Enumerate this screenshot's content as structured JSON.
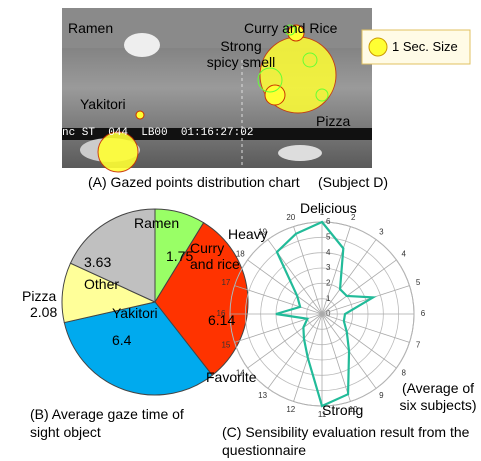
{
  "panel_a": {
    "labels": [
      "Ramen",
      "Curry and Rice",
      "Strong spicy smell",
      "Yakitori",
      "Pizza"
    ],
    "legend": "1 Sec. Size",
    "timestamp": "nc ST  044  LB00  01:16:27:02",
    "caption": "(A) Gazed points distribution chart",
    "subject": "(Subject D)"
  },
  "chart_data": [
    {
      "type": "pie",
      "caption": "(B) Average gaze time of sight object",
      "categories": [
        "Ramen",
        "Curry and rice",
        "Yakitori",
        "Pizza",
        "Other"
      ],
      "values": [
        1.75,
        6.14,
        6.4,
        2.08,
        3.63
      ],
      "colors": [
        "#99ff66",
        "#ff3300",
        "#00aaee",
        "#ffff99",
        "#c0c0c0"
      ]
    },
    {
      "type": "radar",
      "caption": "(C) Sensibility evaluation result from the questionnaire",
      "categories": [
        "1",
        "2",
        "3",
        "4",
        "5",
        "6",
        "7",
        "8",
        "9",
        "10",
        "11",
        "12",
        "13",
        "14",
        "15",
        "16",
        "17",
        "18",
        "19",
        "20"
      ],
      "values": [
        6,
        4.5,
        2,
        2,
        3.5,
        1.5,
        1.5,
        2,
        3,
        5.5,
        6,
        3,
        2,
        1.5,
        1,
        3,
        1.5,
        2,
        5,
        5.5
      ],
      "rlim": [
        0,
        6
      ],
      "rticks": [
        0,
        1,
        2,
        3,
        4,
        5,
        6
      ],
      "color": "#22bb99",
      "annotations": [
        "Delicious",
        "Heavy",
        "Favorite",
        "Strong",
        "(Average of six subjects)"
      ]
    }
  ]
}
